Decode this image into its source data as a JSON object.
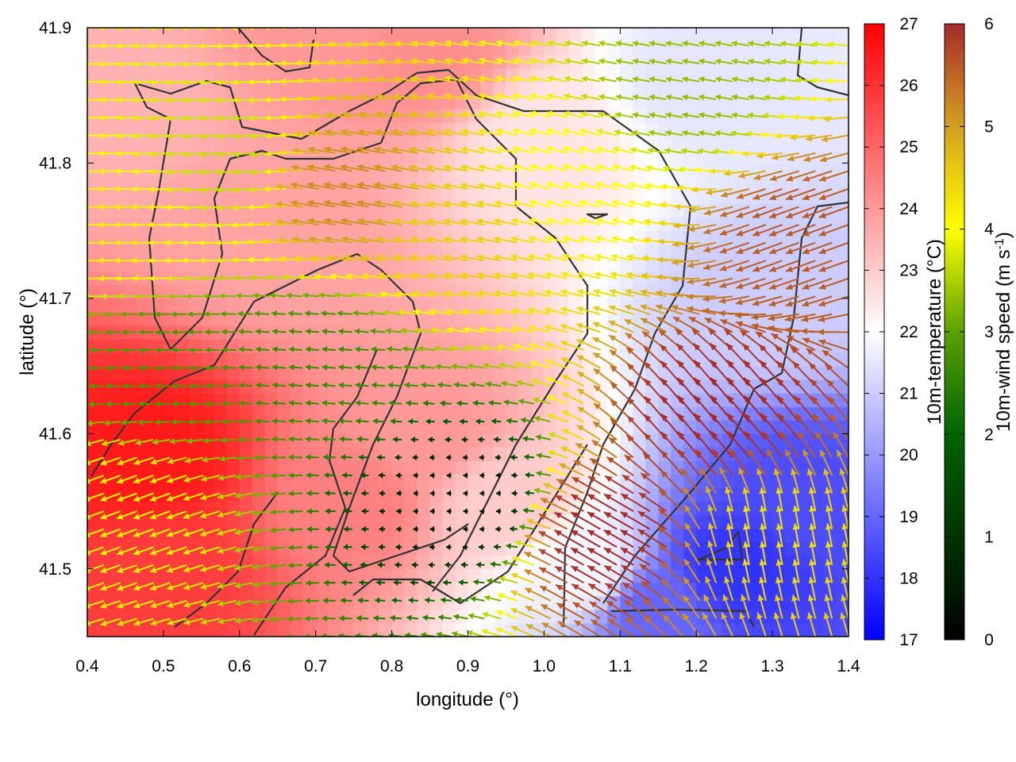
{
  "chart_data": {
    "type": "heatmap",
    "title": "",
    "xlabel": "longitude (°)",
    "ylabel": "latitude (°)",
    "xlim": [
      0.4,
      1.4
    ],
    "ylim": [
      41.45,
      41.9
    ],
    "xticks": [
      "0.4",
      "0.5",
      "0.6",
      "0.7",
      "0.8",
      "0.9",
      "1.0",
      "1.1",
      "1.2",
      "1.3",
      "1.4"
    ],
    "yticks": [
      "41.5",
      "41.6",
      "41.7",
      "41.8",
      "41.9"
    ],
    "grid": false,
    "temperature_colorbar": {
      "label": "10m-temperature (°C)",
      "range": [
        17,
        27
      ],
      "ticks": [
        "17",
        "18",
        "19",
        "20",
        "21",
        "22",
        "23",
        "24",
        "25",
        "26",
        "27"
      ],
      "colors": [
        "#0000ff",
        "#ffffff",
        "#ff0000"
      ]
    },
    "wind_colorbar": {
      "label": "10m-wind speed (m s",
      "label_sup": "-1",
      "label_close": ")",
      "range": [
        0,
        6
      ],
      "ticks": [
        "0",
        "1",
        "2",
        "3",
        "4",
        "5",
        "6"
      ],
      "colors": [
        "#000000",
        "#006400",
        "#5aa000",
        "#ffff00",
        "#d4a020",
        "#a52a2a"
      ]
    },
    "temperature_field_samples": [
      {
        "lon": 0.45,
        "lat": 41.85,
        "t": 23.5
      },
      {
        "lon": 0.48,
        "lat": 41.58,
        "t": 26.5
      },
      {
        "lon": 0.5,
        "lat": 41.5,
        "t": 25.8
      },
      {
        "lon": 0.65,
        "lat": 41.75,
        "t": 23.8
      },
      {
        "lon": 0.75,
        "lat": 41.55,
        "t": 24.5
      },
      {
        "lon": 0.85,
        "lat": 41.6,
        "t": 24.0
      },
      {
        "lon": 0.95,
        "lat": 41.55,
        "t": 23.0
      },
      {
        "lon": 0.85,
        "lat": 41.88,
        "t": 24.2
      },
      {
        "lon": 1.0,
        "lat": 41.82,
        "t": 22.5
      },
      {
        "lon": 1.2,
        "lat": 41.86,
        "t": 21.5
      },
      {
        "lon": 1.3,
        "lat": 41.7,
        "t": 21.0
      },
      {
        "lon": 1.35,
        "lat": 41.55,
        "t": 18.5
      },
      {
        "lon": 1.25,
        "lat": 41.5,
        "t": 18.0
      },
      {
        "lon": 1.15,
        "lat": 41.47,
        "t": 19.0
      },
      {
        "lon": 1.05,
        "lat": 41.5,
        "t": 21.8
      },
      {
        "lon": 0.7,
        "lat": 41.9,
        "t": 24.0
      }
    ],
    "wind_field_samples": [
      {
        "lon": 0.45,
        "lat": 41.75,
        "speed": 3.8,
        "dir_deg": 180
      },
      {
        "lon": 0.6,
        "lat": 41.8,
        "speed": 3.2,
        "dir_deg": 185
      },
      {
        "lon": 0.75,
        "lat": 41.78,
        "speed": 5.0,
        "dir_deg": 170
      },
      {
        "lon": 0.9,
        "lat": 41.75,
        "speed": 4.2,
        "dir_deg": 170
      },
      {
        "lon": 1.05,
        "lat": 41.78,
        "speed": 3.6,
        "dir_deg": 165
      },
      {
        "lon": 1.2,
        "lat": 41.85,
        "speed": 2.8,
        "dir_deg": 170
      },
      {
        "lon": 0.5,
        "lat": 41.65,
        "speed": 2.2,
        "dir_deg": 180
      },
      {
        "lon": 0.7,
        "lat": 41.65,
        "speed": 2.0,
        "dir_deg": 175
      },
      {
        "lon": 0.9,
        "lat": 41.55,
        "speed": 0.3,
        "dir_deg": 180
      },
      {
        "lon": 1.1,
        "lat": 41.52,
        "speed": 6.0,
        "dir_deg": 150
      },
      {
        "lon": 1.25,
        "lat": 41.6,
        "speed": 6.0,
        "dir_deg": 130
      },
      {
        "lon": 1.3,
        "lat": 41.52,
        "speed": 4.0,
        "dir_deg": 100
      },
      {
        "lon": 1.35,
        "lat": 41.75,
        "speed": 5.5,
        "dir_deg": 200
      },
      {
        "lon": 0.45,
        "lat": 41.55,
        "speed": 3.5,
        "dir_deg": 200
      }
    ]
  }
}
